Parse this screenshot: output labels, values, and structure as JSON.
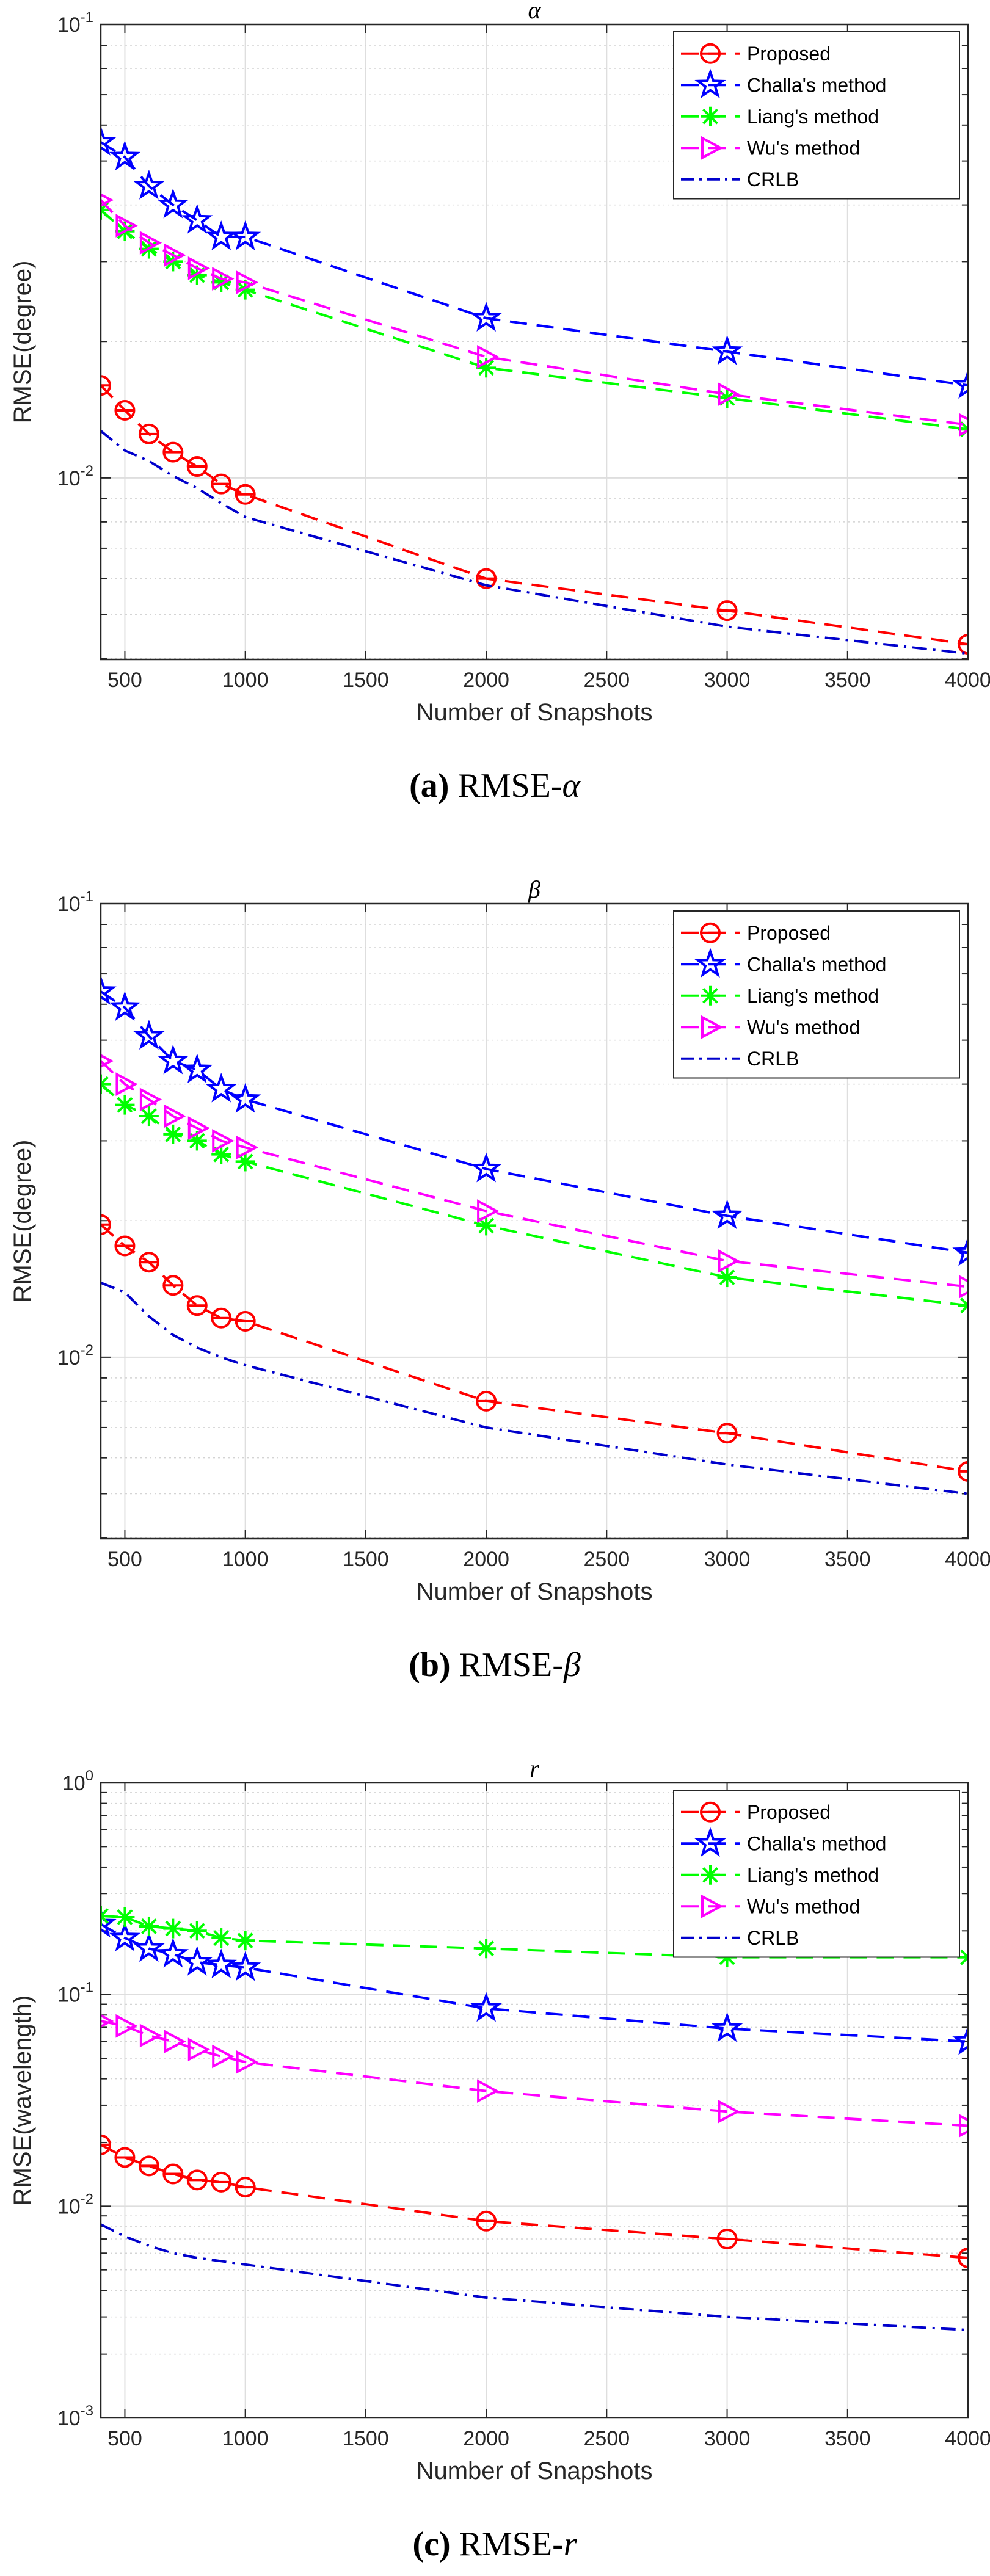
{
  "chart_data": [
    {
      "type": "line",
      "title": "α",
      "xlabel": "Number of Snapshots",
      "ylabel": "RMSE(degree)",
      "yscale": "log",
      "xlim": [
        400,
        4000
      ],
      "ylim_exp": [
        -2.4,
        -1
      ],
      "x_ticks": [
        "500",
        "1000",
        "1500",
        "2000",
        "2500",
        "3000",
        "3500",
        "4000"
      ],
      "y_ticks": [
        {
          "exp": -1,
          "label": "10",
          "sup": "-1"
        },
        {
          "exp": -2,
          "label": "10",
          "sup": "-2"
        }
      ],
      "caption_label": "(a)",
      "caption_text": "RMSE-",
      "caption_var": "α",
      "x": [
        400,
        500,
        600,
        700,
        800,
        900,
        1000,
        2000,
        3000,
        4000
      ],
      "series": [
        {
          "name": "Proposed",
          "color": "#ff0000",
          "dash": "28 16",
          "marker": "circle",
          "values": [
            0.016,
            0.0141,
            0.0125,
            0.0114,
            0.0106,
            0.0097,
            0.0092,
            0.006,
            0.0051,
            0.0043
          ]
        },
        {
          "name": "Challa's method",
          "color": "#0000ff",
          "dash": "28 16",
          "marker": "star",
          "values": [
            0.055,
            0.051,
            0.044,
            0.04,
            0.037,
            0.034,
            0.034,
            0.0225,
            0.019,
            0.016
          ]
        },
        {
          "name": "Liang's method",
          "color": "#00ff00",
          "dash": "28 16",
          "marker": "asterisk",
          "values": [
            0.039,
            0.035,
            0.032,
            0.03,
            0.028,
            0.027,
            0.026,
            0.0175,
            0.015,
            0.0128
          ]
        },
        {
          "name": "Wu's method",
          "color": "#ff00ff",
          "dash": "28 16",
          "marker": "triangle",
          "values": [
            0.041,
            0.036,
            0.033,
            0.031,
            0.029,
            0.0275,
            0.027,
            0.0185,
            0.0153,
            0.0131
          ]
        },
        {
          "name": "CRLB",
          "color": "#0000cc",
          "dash": "24 10 4 10",
          "marker": "none",
          "values": [
            0.0127,
            0.0115,
            0.0109,
            0.0101,
            0.0095,
            0.0088,
            0.0082,
            0.0058,
            0.0047,
            0.0041
          ]
        }
      ]
    },
    {
      "type": "line",
      "title": "β",
      "xlabel": "Number of Snapshots",
      "ylabel": "RMSE(degree)",
      "yscale": "log",
      "xlim": [
        400,
        4000
      ],
      "ylim_exp": [
        -2.4,
        -1
      ],
      "x_ticks": [
        "500",
        "1000",
        "1500",
        "2000",
        "2500",
        "3000",
        "3500",
        "4000"
      ],
      "y_ticks": [
        {
          "exp": -1,
          "label": "10",
          "sup": "-1"
        },
        {
          "exp": -2,
          "label": "10",
          "sup": "-2"
        }
      ],
      "caption_label": "(b)",
      "caption_text": "RMSE-",
      "caption_var": "β",
      "x": [
        400,
        500,
        600,
        700,
        800,
        900,
        1000,
        2000,
        3000,
        4000
      ],
      "series": [
        {
          "name": "Proposed",
          "color": "#ff0000",
          "dash": "28 16",
          "marker": "circle",
          "values": [
            0.0196,
            0.0176,
            0.0162,
            0.0144,
            0.013,
            0.0122,
            0.012,
            0.008,
            0.0068,
            0.0056
          ]
        },
        {
          "name": "Challa's method",
          "color": "#0000ff",
          "dash": "28 16",
          "marker": "star",
          "values": [
            0.064,
            0.059,
            0.051,
            0.045,
            0.043,
            0.039,
            0.037,
            0.026,
            0.0205,
            0.017
          ]
        },
        {
          "name": "Liang's method",
          "color": "#00ff00",
          "dash": "28 16",
          "marker": "asterisk",
          "values": [
            0.04,
            0.036,
            0.034,
            0.031,
            0.03,
            0.028,
            0.027,
            0.0195,
            0.015,
            0.013
          ]
        },
        {
          "name": "Wu's method",
          "color": "#ff00ff",
          "dash": "28 16",
          "marker": "triangle",
          "values": [
            0.045,
            0.04,
            0.037,
            0.034,
            0.032,
            0.03,
            0.029,
            0.021,
            0.0163,
            0.0143
          ]
        },
        {
          "name": "CRLB",
          "color": "#0000cc",
          "dash": "24 10 4 10",
          "marker": "none",
          "values": [
            0.0146,
            0.0139,
            0.0123,
            0.0112,
            0.0105,
            0.01,
            0.0096,
            0.007,
            0.0058,
            0.005
          ]
        }
      ]
    },
    {
      "type": "line",
      "title": "r",
      "xlabel": "Number of Snapshots",
      "ylabel": "RMSE(wavelength)",
      "yscale": "log",
      "xlim": [
        400,
        4000
      ],
      "ylim_exp": [
        -3,
        0
      ],
      "x_ticks": [
        "500",
        "1000",
        "1500",
        "2000",
        "2500",
        "3000",
        "3500",
        "4000"
      ],
      "y_ticks": [
        {
          "exp": 0,
          "label": "10",
          "sup": "0"
        },
        {
          "exp": -1,
          "label": "10",
          "sup": "-1"
        },
        {
          "exp": -2,
          "label": "10",
          "sup": "-2"
        },
        {
          "exp": -3,
          "label": "10",
          "sup": "-3"
        }
      ],
      "caption_label": "(c)",
      "caption_text": "RMSE-",
      "caption_var": "r",
      "x": [
        400,
        500,
        600,
        700,
        800,
        900,
        1000,
        2000,
        3000,
        4000
      ],
      "series": [
        {
          "name": "Proposed",
          "color": "#ff0000",
          "dash": "28 16",
          "marker": "circle",
          "values": [
            0.0195,
            0.017,
            0.0155,
            0.0142,
            0.0133,
            0.013,
            0.0123,
            0.0085,
            0.007,
            0.0057
          ]
        },
        {
          "name": "Challa's method",
          "color": "#0000ff",
          "dash": "28 16",
          "marker": "star",
          "values": [
            0.215,
            0.185,
            0.165,
            0.155,
            0.142,
            0.138,
            0.134,
            0.086,
            0.069,
            0.06
          ]
        },
        {
          "name": "Liang's method",
          "color": "#00ff00",
          "dash": "28 16",
          "marker": "asterisk",
          "values": [
            0.235,
            0.232,
            0.21,
            0.205,
            0.2,
            0.185,
            0.18,
            0.165,
            0.15,
            0.15
          ]
        },
        {
          "name": "Wu's method",
          "color": "#ff00ff",
          "dash": "28 16",
          "marker": "triangle",
          "values": [
            0.075,
            0.071,
            0.064,
            0.06,
            0.055,
            0.051,
            0.048,
            0.035,
            0.028,
            0.024
          ]
        },
        {
          "name": "CRLB",
          "color": "#0000cc",
          "dash": "24 10 4 10",
          "marker": "none",
          "values": [
            0.0082,
            0.0072,
            0.0065,
            0.006,
            0.0057,
            0.0055,
            0.0053,
            0.0037,
            0.003,
            0.0026
          ]
        }
      ]
    }
  ]
}
